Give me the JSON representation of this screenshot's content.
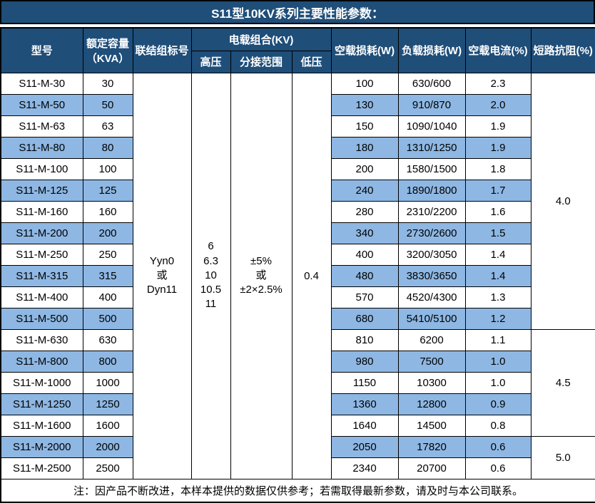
{
  "title": "S11型10KV系列主要性能参数：",
  "header": {
    "model": "型号",
    "capacity_line1": "额定容量",
    "capacity_line2": "（KVA）",
    "connection": "联结组标号",
    "voltage_group": "电载组合(KV)",
    "hv": "高压",
    "tap_range": "分接范围",
    "lv": "低压",
    "no_load_loss": "空载损耗(W)",
    "load_loss": "负载损耗(W)",
    "no_load_current": "空载电流(%)",
    "impedance": "短路抗阻(%)"
  },
  "merged": {
    "connection_lines": [
      "Yyn0",
      "或",
      "Dyn11"
    ],
    "hv_lines": [
      "6",
      "6.3",
      "10",
      "10.5",
      "11"
    ],
    "tap_lines": [
      "±5%",
      "或",
      "±2×2.5%"
    ],
    "lv": "0.4",
    "impedance_groups": [
      {
        "value": "4.0",
        "rowspan": 12
      },
      {
        "value": "4.5",
        "rowspan": 5
      },
      {
        "value": "5.0",
        "rowspan": 2
      }
    ]
  },
  "rows": [
    {
      "model": "S11-M-30",
      "capacity": "30",
      "no_load_loss": "100",
      "load_loss": "630/600",
      "no_load_current": "2.3",
      "shaded": false
    },
    {
      "model": "S11-M-50",
      "capacity": "50",
      "no_load_loss": "130",
      "load_loss": "910/870",
      "no_load_current": "2.0",
      "shaded": true
    },
    {
      "model": "S11-M-63",
      "capacity": "63",
      "no_load_loss": "150",
      "load_loss": "1090/1040",
      "no_load_current": "1.9",
      "shaded": false
    },
    {
      "model": "S11-M-80",
      "capacity": "80",
      "no_load_loss": "180",
      "load_loss": "1310/1250",
      "no_load_current": "1.9",
      "shaded": true
    },
    {
      "model": "S11-M-100",
      "capacity": "100",
      "no_load_loss": "200",
      "load_loss": "1580/1500",
      "no_load_current": "1.8",
      "shaded": false
    },
    {
      "model": "S11-M-125",
      "capacity": "125",
      "no_load_loss": "240",
      "load_loss": "1890/1800",
      "no_load_current": "1.7",
      "shaded": true
    },
    {
      "model": "S11-M-160",
      "capacity": "160",
      "no_load_loss": "280",
      "load_loss": "2310/2200",
      "no_load_current": "1.6",
      "shaded": false
    },
    {
      "model": "S11-M-200",
      "capacity": "200",
      "no_load_loss": "340",
      "load_loss": "2730/2600",
      "no_load_current": "1.5",
      "shaded": true
    },
    {
      "model": "S11-M-250",
      "capacity": "250",
      "no_load_loss": "400",
      "load_loss": "3200/3050",
      "no_load_current": "1.4",
      "shaded": false
    },
    {
      "model": "S11-M-315",
      "capacity": "315",
      "no_load_loss": "480",
      "load_loss": "3830/3650",
      "no_load_current": "1.4",
      "shaded": true
    },
    {
      "model": "S11-M-400",
      "capacity": "400",
      "no_load_loss": "570",
      "load_loss": "4520/4300",
      "no_load_current": "1.3",
      "shaded": false
    },
    {
      "model": "S11-M-500",
      "capacity": "500",
      "no_load_loss": "680",
      "load_loss": "5410/5100",
      "no_load_current": "1.2",
      "shaded": true
    },
    {
      "model": "S11-M-630",
      "capacity": "630",
      "no_load_loss": "810",
      "load_loss": "6200",
      "no_load_current": "1.1",
      "shaded": false
    },
    {
      "model": "S11-M-800",
      "capacity": "800",
      "no_load_loss": "980",
      "load_loss": "7500",
      "no_load_current": "1.0",
      "shaded": true
    },
    {
      "model": "S11-M-1000",
      "capacity": "1000",
      "no_load_loss": "1150",
      "load_loss": "10300",
      "no_load_current": "1.0",
      "shaded": false
    },
    {
      "model": "S11-M-1250",
      "capacity": "1250",
      "no_load_loss": "1360",
      "load_loss": "12800",
      "no_load_current": "0.9",
      "shaded": true
    },
    {
      "model": "S11-M-1600",
      "capacity": "1600",
      "no_load_loss": "1640",
      "load_loss": "14500",
      "no_load_current": "0.8",
      "shaded": false
    },
    {
      "model": "S11-M-2000",
      "capacity": "2000",
      "no_load_loss": "2050",
      "load_loss": "17820",
      "no_load_current": "0.6",
      "shaded": true
    },
    {
      "model": "S11-M-2500",
      "capacity": "2500",
      "no_load_loss": "2340",
      "load_loss": "20700",
      "no_load_current": "0.6",
      "shaded": false
    }
  ],
  "footer_note": "注：因产品不断改进，本样本提供的数据仅供参考；若需取得最新参数，请及时与本公司联系。",
  "colors": {
    "header_bg": "#1F4E79",
    "shaded_row_bg": "#8EB7E3",
    "border": "#000000",
    "header_text": "#FFFFFF"
  }
}
